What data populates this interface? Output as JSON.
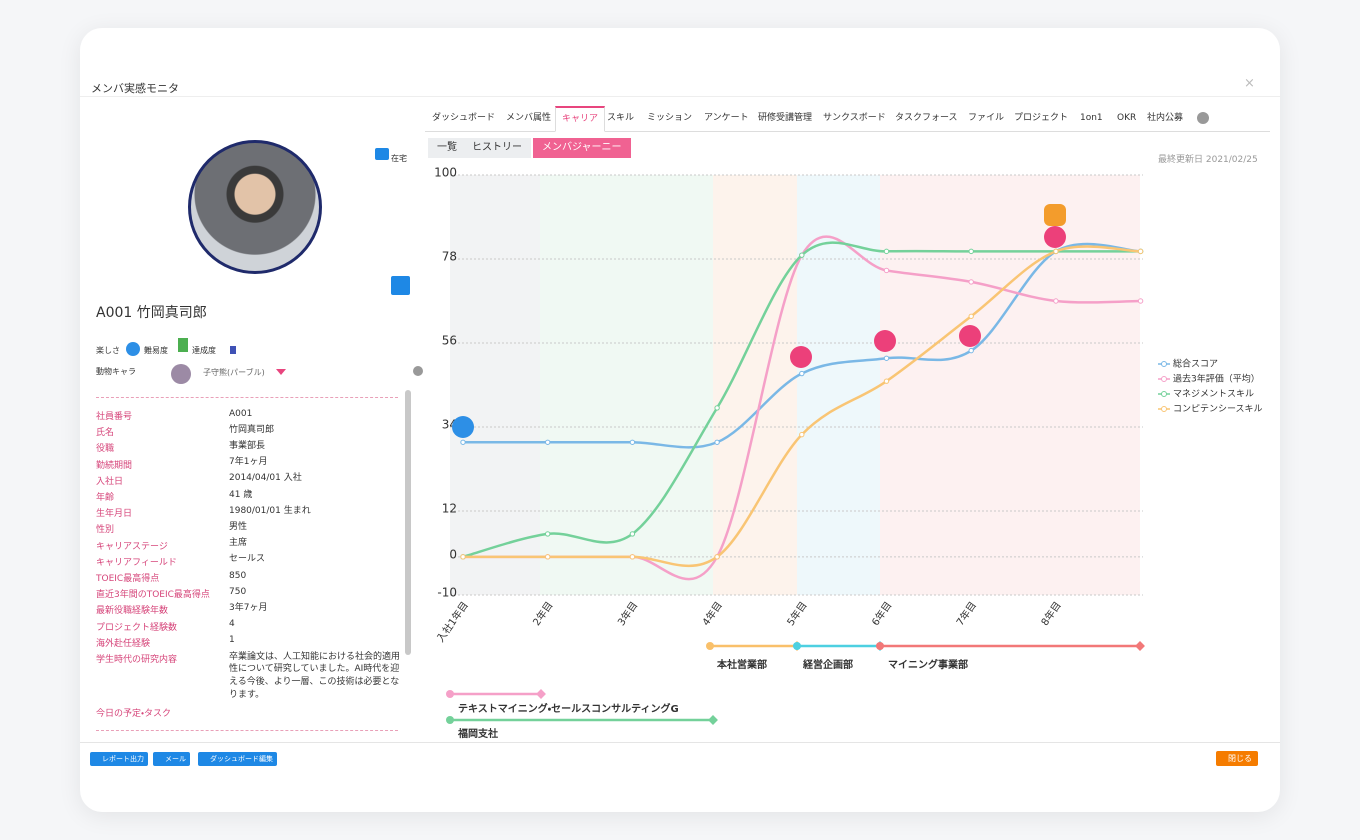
{
  "header": {
    "title": "メンバ実感モニタ",
    "close": "×"
  },
  "tabs": [
    {
      "label": "ダッシュボード"
    },
    {
      "label": "メンバ属性"
    },
    {
      "label": "キャリア",
      "active": true
    },
    {
      "label": "スキル"
    },
    {
      "label": "ミッション"
    },
    {
      "label": "アンケート"
    },
    {
      "label": "研修受講管理"
    },
    {
      "label": "サンクスボード"
    },
    {
      "label": "タスクフォース"
    },
    {
      "label": "ファイル"
    },
    {
      "label": "プロジェクト"
    },
    {
      "label": "1on1"
    },
    {
      "label": "OKR"
    },
    {
      "label": "社内公募"
    }
  ],
  "subtabs": [
    {
      "label": "一覧"
    },
    {
      "label": "ヒストリー"
    },
    {
      "label": "メンバジャーニー",
      "active": true
    }
  ],
  "last_updated": "最終更新日 2021/02/25",
  "profile": {
    "status": "在宅",
    "name": "A001 竹岡真司郎",
    "indicators": [
      "楽しさ",
      "難易度",
      "達成度"
    ],
    "animal_label": "動物キャラ",
    "animal": "子守熊(パーブル)",
    "fields": [
      {
        "label": "社員番号",
        "value": "A001"
      },
      {
        "label": "氏名",
        "value": "竹岡真司郎"
      },
      {
        "label": "役職",
        "value": "事業部長"
      },
      {
        "label": "勤続期間",
        "value": "7年1ヶ月"
      },
      {
        "label": "入社日",
        "value": "2014/04/01 入社"
      },
      {
        "label": "年齢",
        "value": "41 歳"
      },
      {
        "label": "生年月日",
        "value": "1980/01/01 生まれ"
      },
      {
        "label": "性別",
        "value": "男性"
      },
      {
        "label": "キャリアステージ",
        "value": "主席"
      },
      {
        "label": "キャリアフィールド",
        "value": "セールス"
      },
      {
        "label": "TOEIC最高得点",
        "value": "850"
      },
      {
        "label": "直近3年間のTOEIC最高得点",
        "value": "750"
      },
      {
        "label": "最新役職経験年数",
        "value": "3年7ヶ月"
      },
      {
        "label": "プロジェクト経験数",
        "value": "4"
      },
      {
        "label": "海外赴任経験",
        "value": "1"
      },
      {
        "label": "学生時代の研究内容",
        "value": "卒業論文は、人工知能における社会的適用性について研究していました。AI時代を迎える今後、より一層、この技術は必要となります。"
      }
    ],
    "tasks_label": "今日の予定・タスク"
  },
  "chart_data": {
    "type": "line",
    "categories": [
      "入社1年目",
      "2年目",
      "3年目",
      "4年目",
      "5年目",
      "6年目",
      "7年目",
      "8年目",
      null
    ],
    "series": [
      {
        "name": "総合スコア",
        "color": "#7ab8e6",
        "values": [
          30,
          30,
          30,
          30,
          48,
          52,
          54,
          80,
          80
        ]
      },
      {
        "name": "過去3年評価（平均）",
        "color": "#f5a0c8",
        "values": [
          0,
          0,
          0,
          0,
          79,
          75,
          72,
          67,
          67
        ]
      },
      {
        "name": "マネジメントスキル",
        "color": "#74d19a",
        "values": [
          0,
          6,
          6,
          39,
          79,
          80,
          80,
          80,
          80
        ]
      },
      {
        "name": "コンピテンシースキル",
        "color": "#f9c574",
        "values": [
          0,
          0,
          0,
          0,
          32,
          46,
          63,
          80,
          80
        ]
      }
    ],
    "ylim": [
      -10,
      100
    ],
    "yticks": [
      100,
      78,
      56,
      34,
      12,
      0,
      -10
    ],
    "grid": true,
    "legend": "right"
  },
  "timeline": [
    {
      "label": "本社営業部",
      "color": "#f9c06a"
    },
    {
      "label": "経営企画部",
      "color": "#4dd0e1"
    },
    {
      "label": "マイニング事業部",
      "color": "#f27878"
    },
    {
      "label": "テキストマイニング・セールスコンサルティングG",
      "color": "#f5a0c8"
    },
    {
      "label": "福岡支社",
      "color": "#74d19a"
    }
  ],
  "footer": {
    "buttons": [
      "レポート出力",
      "メール",
      "ダッシュボード編集"
    ],
    "close": "閉じる"
  }
}
